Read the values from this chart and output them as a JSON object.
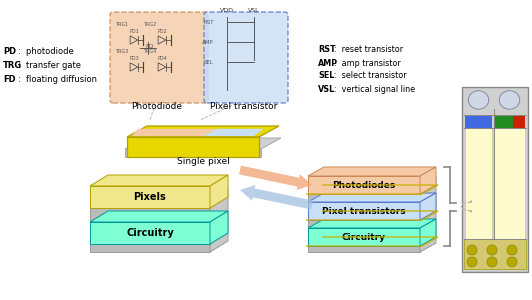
{
  "bg_color": "#ffffff",
  "left_labels": [
    [
      "PD",
      ":  photodiode"
    ],
    [
      "TRG",
      ":  transfer gate"
    ],
    [
      "FD",
      ":  floating diffusion"
    ]
  ],
  "right_labels": [
    [
      "RST",
      ":  reset transistor"
    ],
    [
      "AMP",
      ":  amp transistor"
    ],
    [
      "SEL",
      ":  select transistor"
    ],
    [
      "VSL",
      ":  vertical signal line"
    ]
  ],
  "photodiode_box_color": "#f5cba7",
  "pixel_transistor_box_color": "#c8dff5",
  "pixel_label": "Single pixel",
  "pixels_layer_color": "#f0e68c",
  "pixels_layer_label": "Pixels",
  "circuitry_layer_color": "#7fffd4",
  "circuitry_layer_label": "Circuitry",
  "photodiodes_layer_color": "#f5cba7",
  "photodiodes_layer_label": "Photodiodes",
  "pixel_transistors_layer_color": "#c8dff5",
  "pixel_transistors_layer_label": "Pixel transistors",
  "circuitry2_layer_color": "#7fffd4",
  "circuitry2_layer_label": "Circuitry",
  "photodiode_label": "Photodiode",
  "pixel_transistor_label": "Pixel transistor",
  "arrow1_color": "#f0a070",
  "arrow2_color": "#a0c0e0",
  "sensor_blue_color": "#4169e1",
  "sensor_green_color": "#228b22",
  "sensor_red_color": "#cc2200",
  "sensor_yellow_color": "#fffacd",
  "sensor_gray_color": "#a0a0a0"
}
